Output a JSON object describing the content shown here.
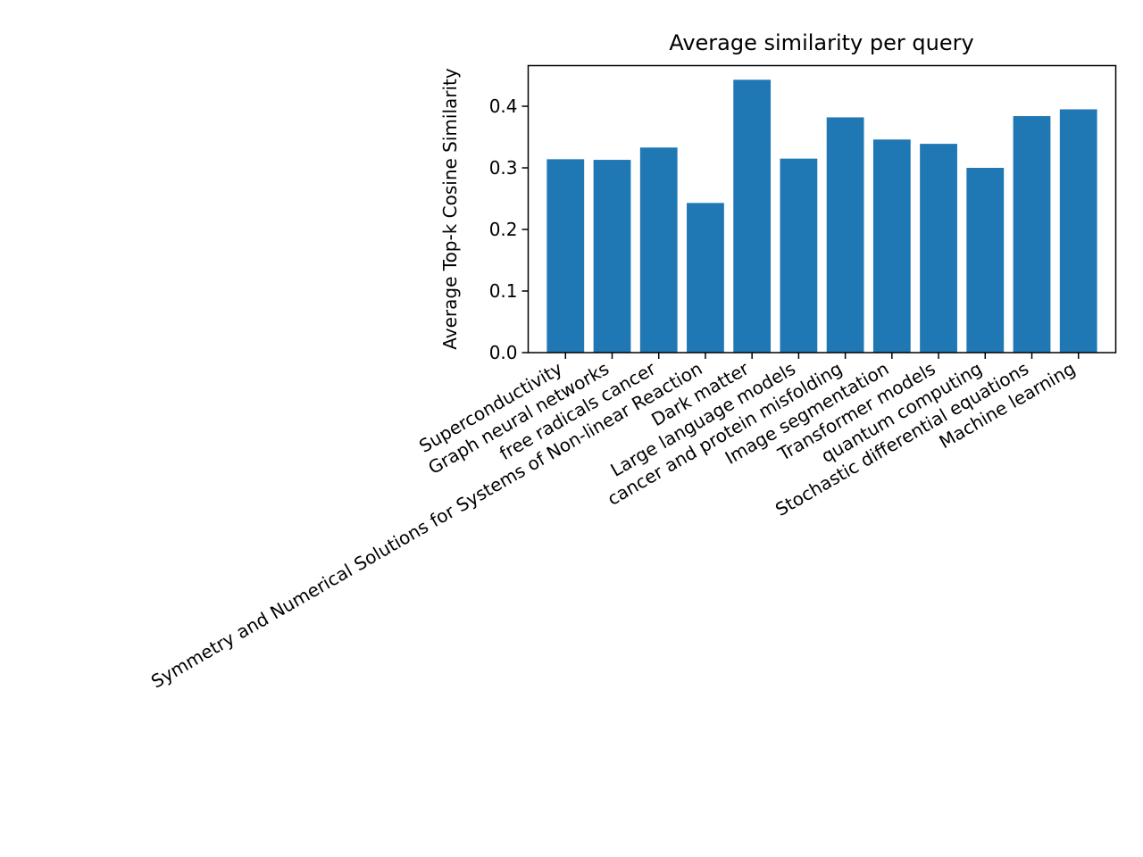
{
  "chart_data": {
    "type": "bar",
    "title": "Average similarity per query",
    "xlabel": "",
    "ylabel": "Average Top-k Cosine Similarity",
    "categories": [
      "Superconductivity",
      "Graph neural networks",
      "free radicals cancer",
      "Symmetry and Numerical Solutions for Systems of Non-linear Reaction",
      "Dark matter",
      "Large language models",
      "cancer and protein misfolding",
      "Image segmentation",
      "Transformer models",
      "quantum computing",
      "Stochastic differential equations",
      "Machine learning"
    ],
    "values": [
      0.314,
      0.313,
      0.333,
      0.243,
      0.443,
      0.315,
      0.382,
      0.346,
      0.339,
      0.3,
      0.384,
      0.395
    ],
    "ylim": [
      0,
      0.466
    ],
    "yticks": [
      0.0,
      0.1,
      0.2,
      0.3,
      0.4
    ],
    "ytick_labels": [
      "0.0",
      "0.1",
      "0.2",
      "0.3",
      "0.4"
    ],
    "bar_color": "#1f77b4",
    "grid": false,
    "legend": "none"
  }
}
